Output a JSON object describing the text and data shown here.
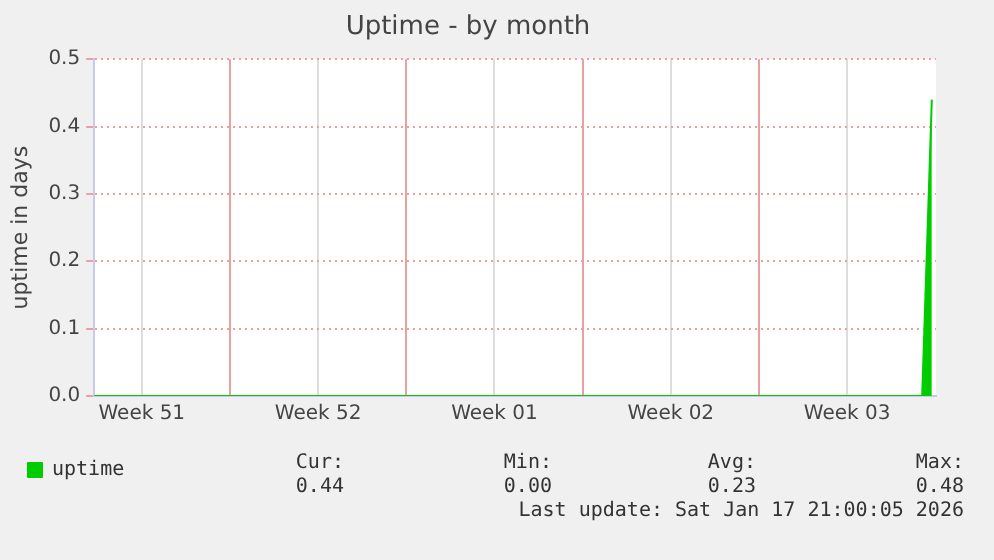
{
  "chart_data": {
    "type": "area",
    "title": "Uptime - by month",
    "ylabel": "uptime in days",
    "x": [
      "2025-12-16T14:40",
      "2026-01-18T11:30",
      "2026-01-18T20:40"
    ],
    "series": [
      {
        "name": "uptime",
        "color": "#00cc00",
        "values": [
          0,
          0,
          0.44
        ]
      }
    ],
    "xlim": [
      "2025-12-16T14:40",
      "2026-01-19T00:40"
    ],
    "xticks": [
      {
        "value": "2025-12-18T12:00",
        "label": "Week 51"
      },
      {
        "value": "2025-12-22T00:00",
        "label": null
      },
      {
        "value": "2025-12-25T12:00",
        "label": "Week 52"
      },
      {
        "value": "2025-12-29T00:00",
        "label": null
      },
      {
        "value": "2026-01-01T12:00",
        "label": "Week 01"
      },
      {
        "value": "2026-01-05T00:00",
        "label": null
      },
      {
        "value": "2026-01-08T12:00",
        "label": "Week 02"
      },
      {
        "value": "2026-01-12T00:00",
        "label": null
      },
      {
        "value": "2026-01-15T12:00",
        "label": "Week 03"
      }
    ],
    "ylim": [
      0,
      0.5
    ],
    "yticks": [
      {
        "value": 0,
        "label": "0.0"
      },
      0.1,
      0.2,
      0.3,
      0.4,
      0.5
    ],
    "grid": true,
    "legend": "bottom left",
    "annotations": [
      "Cur:",
      "Min:",
      "Avg:",
      "Max:",
      "0.44",
      "0.00",
      "0.23",
      "0.48",
      "Last update: Sat Jan 17 21:00:05 2026"
    ]
  }
}
